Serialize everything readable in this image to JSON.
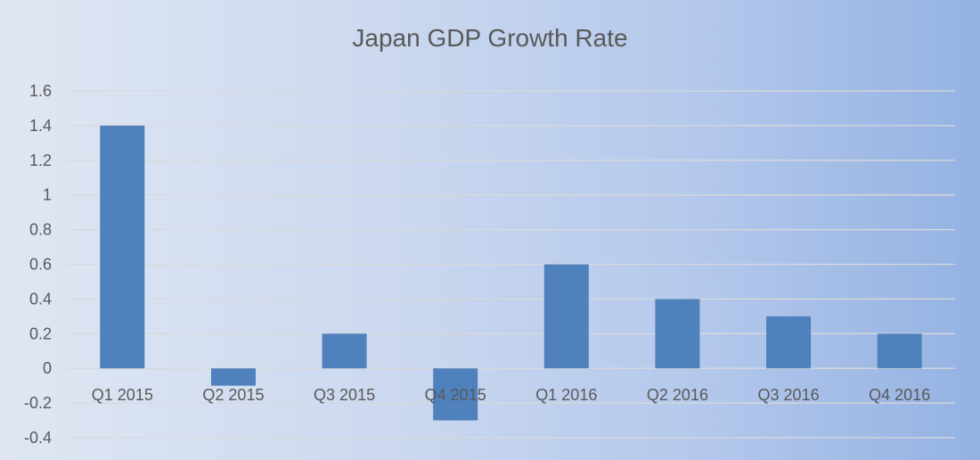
{
  "chart_data": {
    "type": "bar",
    "title": "Japan GDP Growth Rate",
    "categories": [
      "Q1 2015",
      "Q2 2015",
      "Q3 2015",
      "Q4 2015",
      "Q1 2016",
      "Q2 2016",
      "Q3 2016",
      "Q4 2016"
    ],
    "values": [
      1.4,
      -0.1,
      0.2,
      -0.3,
      0.6,
      0.4,
      0.3,
      0.2
    ],
    "xlabel": "",
    "ylabel": "",
    "ylim": [
      -0.4,
      1.6
    ],
    "yticks": [
      "-0.4",
      "-0.2",
      "0",
      "0.2",
      "0.4",
      "0.6",
      "0.8",
      "1",
      "1.2",
      "1.4",
      "1.6"
    ],
    "grid": true,
    "legend": "none",
    "bar_color": "#4f81bd"
  }
}
